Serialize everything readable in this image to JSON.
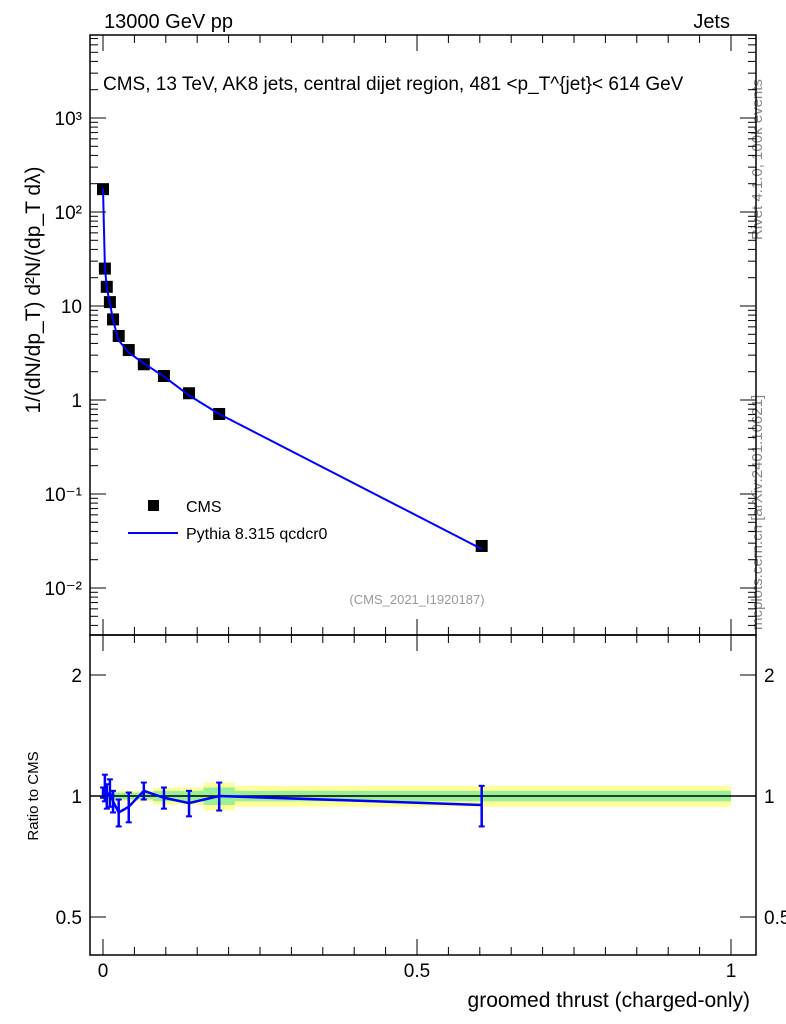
{
  "header": {
    "left": "13000 GeV pp",
    "right": "Jets"
  },
  "side": {
    "rivet": "Rivet 4.1.0,  100k events",
    "mcplots": "mcplots.cern.ch [arXiv:2401.10621]"
  },
  "chart_data": [
    {
      "type": "scatter",
      "title": "CMS, 13 TeV, AK8 jets, central dijet region, 481 <p_T^{jet}< 614 GeV",
      "ylabel": "1/(dN/dp_T) d²N/(dp_T dλ)",
      "xlabel": "",
      "yscale": "log",
      "ylim": [
        0.005,
        5000
      ],
      "xlim": [
        -0.02,
        1.04
      ],
      "yticks": [
        "10^-2",
        "10^-1",
        "1",
        "10",
        "10^2",
        "10^3"
      ],
      "analysis_tag": "(CMS_2021_I1920187)",
      "legend": "left",
      "x": [
        0.0,
        0.003,
        0.006,
        0.011,
        0.016,
        0.025,
        0.041,
        0.065,
        0.097,
        0.137,
        0.185,
        0.603
      ],
      "series": [
        {
          "name": "CMS",
          "style": "markers",
          "color": "#000000",
          "values": [
            175,
            25,
            16,
            11,
            7.2,
            4.8,
            3.4,
            2.4,
            1.8,
            1.18,
            0.71,
            0.028
          ]
        },
        {
          "name": "Pythia 8.315 qcdcr0",
          "style": "line",
          "color": "#0000ff",
          "values": [
            178,
            26,
            15.5,
            10.8,
            7.0,
            4.3,
            3.2,
            2.45,
            1.78,
            1.12,
            0.71,
            0.026
          ]
        }
      ]
    },
    {
      "type": "line",
      "ylabel": "Ratio to CMS",
      "xlabel": "groomed thrust (charged-only)",
      "yscale": "log",
      "ylim": [
        0.4,
        2.5
      ],
      "yticks": [
        "0.5",
        "1",
        "2"
      ],
      "xticks": [
        "0",
        "0.5",
        "1"
      ],
      "x": [
        0.0,
        0.003,
        0.006,
        0.011,
        0.016,
        0.025,
        0.041,
        0.065,
        0.097,
        0.137,
        0.185,
        0.603
      ],
      "ratio": [
        1.02,
        1.05,
        1.0,
        1.02,
        0.97,
        0.91,
        0.94,
        1.03,
        0.99,
        0.96,
        1.0,
        0.95
      ],
      "ratio_err": [
        0.03,
        0.08,
        0.07,
        0.08,
        0.06,
        0.07,
        0.08,
        0.05,
        0.06,
        0.07,
        0.08,
        0.11
      ],
      "band_bins": [
        [
          0.0,
          0.03
        ],
        [
          0.03,
          0.08
        ],
        [
          0.08,
          0.13
        ],
        [
          0.13,
          0.16
        ],
        [
          0.16,
          0.21
        ],
        [
          0.21,
          1.0
        ]
      ],
      "band_inner": [
        0.02,
        0.02,
        0.03,
        0.03,
        0.05,
        0.03
      ],
      "band_outer": [
        0.03,
        0.03,
        0.05,
        0.05,
        0.08,
        0.06
      ],
      "colors": {
        "inner": "#98f098",
        "outer": "#ffff99",
        "mc": "#0000ff"
      }
    }
  ]
}
